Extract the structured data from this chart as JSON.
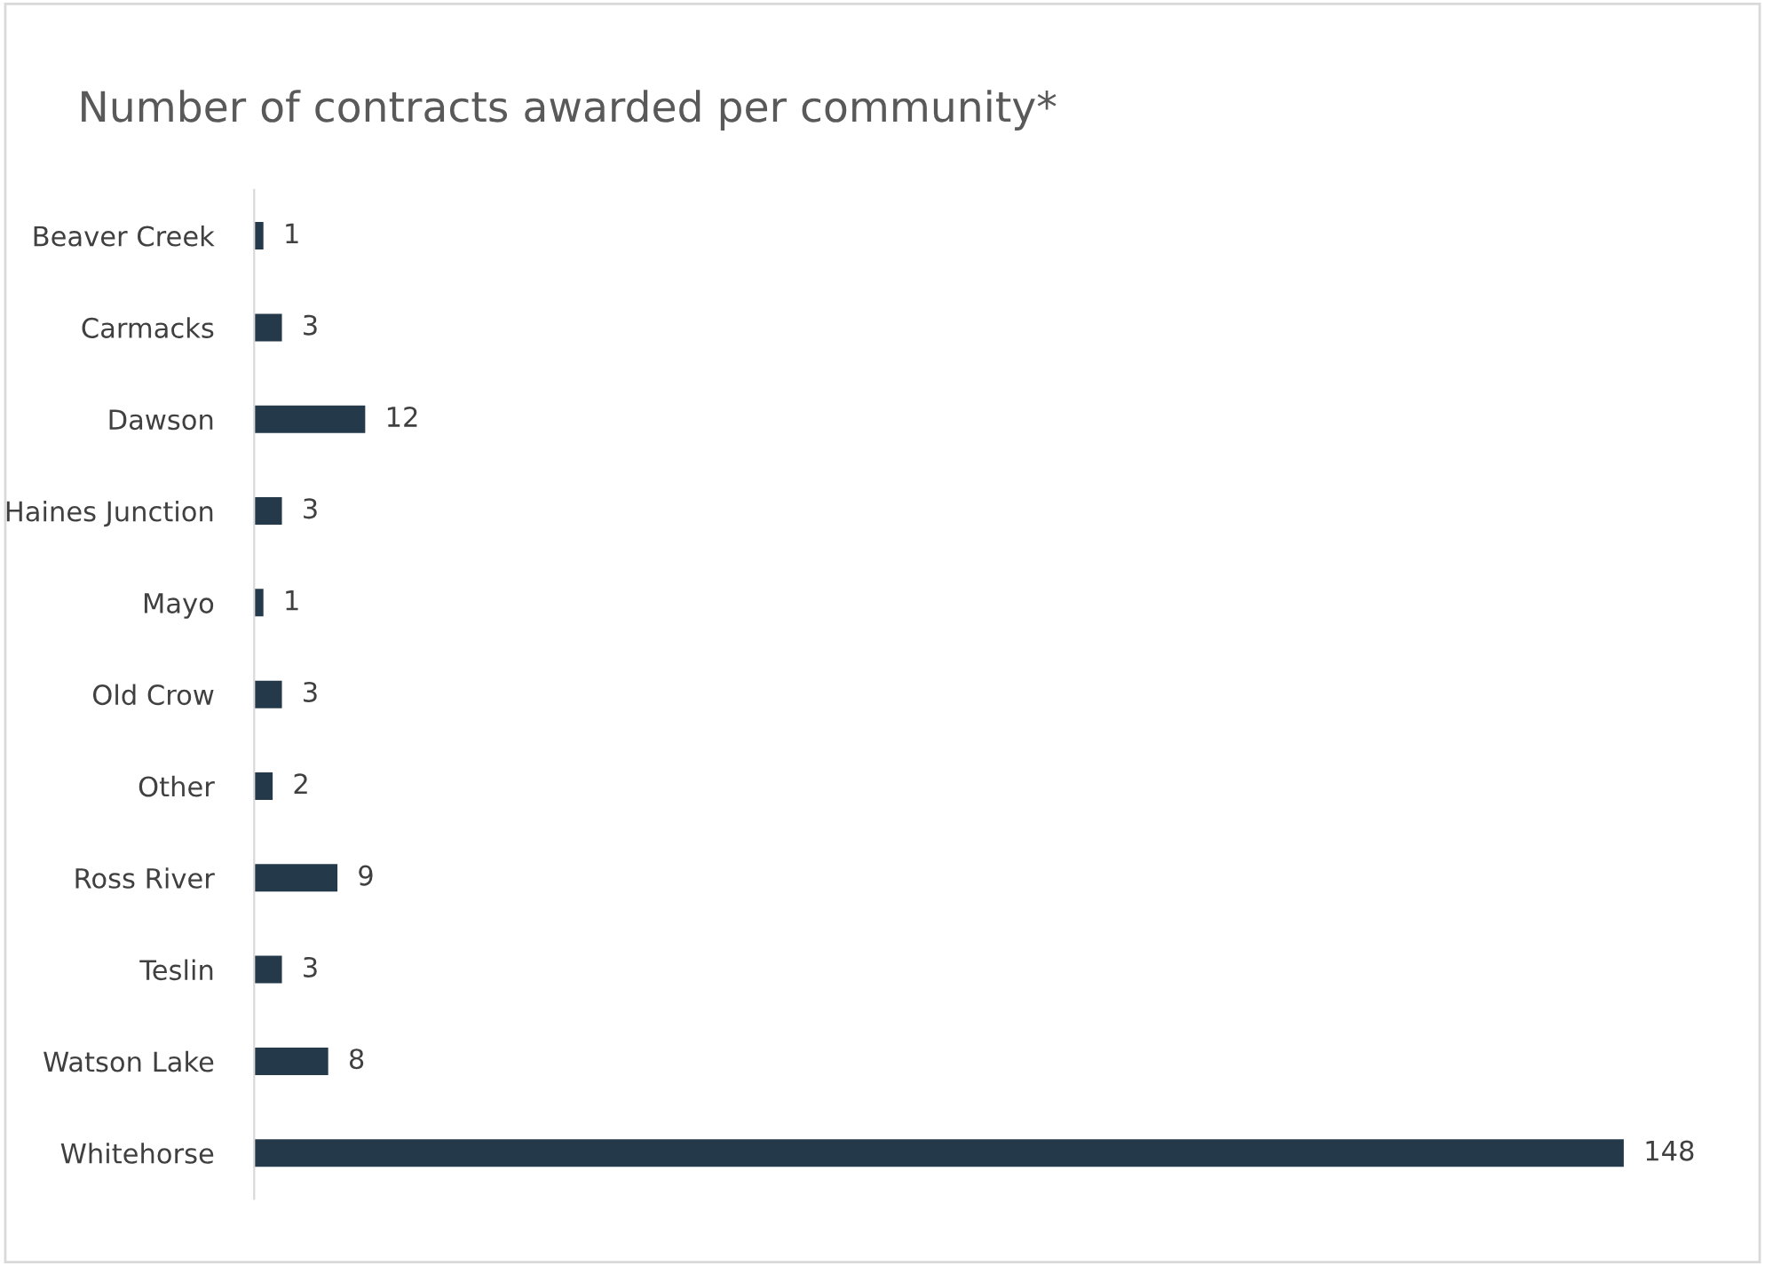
{
  "chart_data": {
    "type": "bar",
    "orientation": "horizontal",
    "title": "Number of contracts awarded per community*",
    "categories": [
      "Beaver Creek",
      "Carmacks",
      "Dawson",
      "Haines Junction",
      "Mayo",
      "Old Crow",
      "Other",
      "Ross River",
      "Teslin",
      "Watson Lake",
      "Whitehorse"
    ],
    "values": [
      1,
      3,
      12,
      3,
      1,
      3,
      2,
      9,
      3,
      8,
      148
    ],
    "color": "#243a4a",
    "data_labels": true,
    "grid": false,
    "legend": false
  }
}
